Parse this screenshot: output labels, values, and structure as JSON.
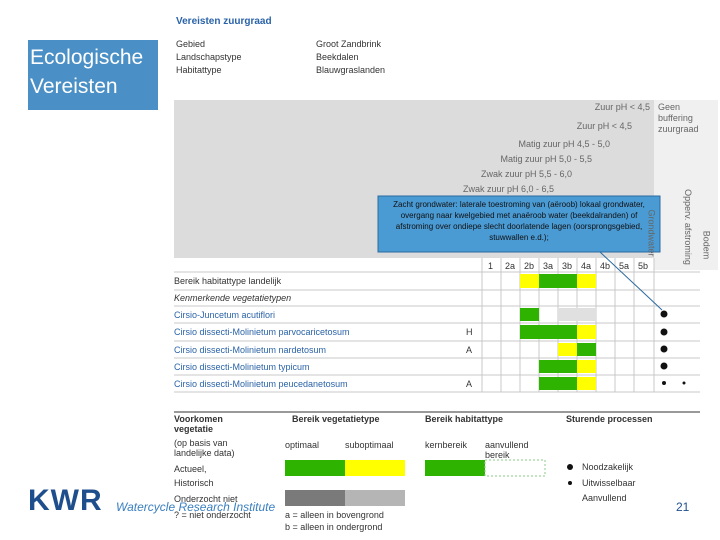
{
  "slide": {
    "title": "Ecologische Vereisten",
    "page_number": "21"
  },
  "footer": {
    "logo": "KWR",
    "tagline": "Watercycle Research Institute"
  },
  "screenshot": {
    "heading": "Vereisten zuurgraad",
    "meta": [
      [
        "Gebied",
        "Groot Zandbrink"
      ],
      [
        "Landschapstype",
        "Beekdalen"
      ],
      [
        "Habitattype",
        "Blauwgraslanden"
      ]
    ],
    "ph_headers": [
      "Zuur pH < 4,5",
      "Zuur pH < 4,5",
      "Matig zuur pH 4,5 - 5,0",
      "Matig zuur pH 5,0 - 5,5",
      "Zwak zuur pH 5,5 - 6,0",
      "Zwak zuur pH 6,0 - 6,5"
    ],
    "buffer_header": "Geen buffering zuurgraad",
    "process_headers": [
      "Grondwater",
      "Opperv. afstroming",
      "Bodem"
    ],
    "column_codes": [
      "1",
      "2a",
      "2b",
      "3a",
      "3b",
      "4a",
      "4b",
      "5a",
      "5b"
    ],
    "callout": "Zacht grondwater: laterale toestroming van (aëroob) lokaal grondwater, overgang naar kwelgebied met anaëroob water (beekdalranden) of afstroming over ondiepe slecht doorlatende lagen (oorsprongsgebied, stuwwallen e.d.);",
    "rows": [
      {
        "name": "Bereik habitattype landelijk",
        "code": ""
      },
      {
        "name": "Kenmerkende vegetatietypen",
        "code": ""
      },
      {
        "name": "Cirsio-Juncetum acutiflori",
        "code": ""
      },
      {
        "name": "Cirsio dissecti-Molinietum parvocaricetosum",
        "code": "H"
      },
      {
        "name": "Cirsio dissecti-Molinietum nardetosum",
        "code": "A"
      },
      {
        "name": "Cirsio dissecti-Molinietum typicum",
        "code": ""
      },
      {
        "name": "Cirsio dissecti-Molinietum peucedanetosum",
        "code": "A"
      }
    ],
    "legend": {
      "occurrence_title": "Voorkomen vegetatie",
      "occurrence_note": "(op basis van landelijke data)",
      "occurrence_items": [
        "Actueel,",
        "Historisch",
        "Onderzocht niet",
        "? = niet onderzocht"
      ],
      "range_veg_title": "Bereik vegetatietype",
      "range_veg_items": [
        "optimaal",
        "suboptimaal"
      ],
      "range_hab_title": "Bereik habitattype",
      "range_hab_items": [
        "kernbereik",
        "aanvullend bereik"
      ],
      "process_title": "Sturende processen",
      "process_items": [
        "Noodzakelijk",
        "Uitwisselbaar",
        "Aanvullend"
      ],
      "notes": [
        "a = alleen in bovengrond",
        "b = alleen in ondergrond"
      ]
    }
  }
}
